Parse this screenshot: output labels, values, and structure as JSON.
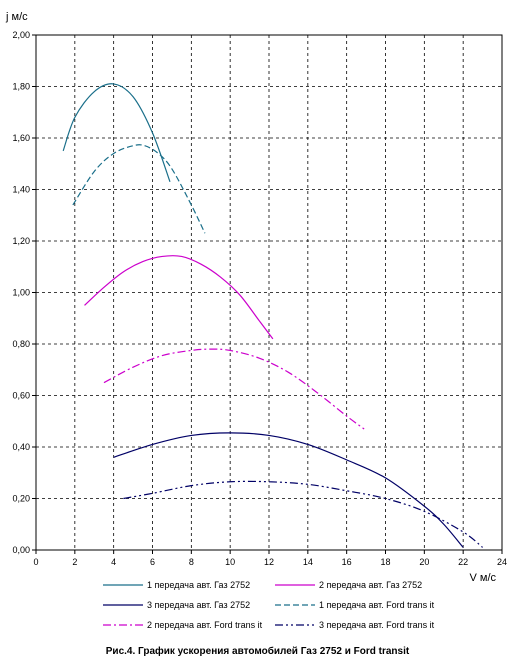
{
  "chart_data": {
    "type": "line",
    "title": "",
    "xlabel": "V м/с",
    "ylabel": "j м/с",
    "xlim": [
      0,
      24
    ],
    "ylim": [
      0,
      2.0
    ],
    "x_ticks": [
      "0",
      "2",
      "4",
      "6",
      "8",
      "10",
      "12",
      "14",
      "16",
      "18",
      "20",
      "22",
      "24"
    ],
    "y_ticks": [
      "0,00",
      "0,20",
      "0,40",
      "0,60",
      "0,80",
      "1,00",
      "1,20",
      "1,40",
      "1,60",
      "1,80",
      "2,00"
    ],
    "grid": true,
    "legend_position": "bottom",
    "series": [
      {
        "name": "1 передача авт. Газ 2752",
        "color": "#1a6f8a",
        "dash": "solid",
        "x": [
          1.4,
          2,
          3,
          4,
          5,
          6,
          6.9
        ],
        "y": [
          1.55,
          1.68,
          1.78,
          1.81,
          1.76,
          1.62,
          1.43
        ]
      },
      {
        "name": "2 передача авт. Газ 2752",
        "color": "#cc00cc",
        "dash": "solid",
        "x": [
          2.5,
          3.5,
          4.5,
          5.5,
          6.5,
          7.5,
          8.5,
          9.5,
          10.5,
          11.5,
          12.2
        ],
        "y": [
          0.95,
          1.02,
          1.08,
          1.12,
          1.14,
          1.14,
          1.11,
          1.06,
          0.99,
          0.89,
          0.82
        ]
      },
      {
        "name": "3 передача авт. Газ 2752",
        "color": "#000066",
        "dash": "solid",
        "x": [
          4,
          6,
          8,
          10,
          12,
          14,
          16,
          18,
          20,
          21,
          22
        ],
        "y": [
          0.36,
          0.41,
          0.445,
          0.455,
          0.445,
          0.41,
          0.35,
          0.28,
          0.17,
          0.1,
          0.01
        ]
      },
      {
        "name": "1 передача авт. Ford trans it",
        "color": "#1a6f8a",
        "dash": "long",
        "x": [
          1.9,
          3,
          4,
          5,
          5.6,
          6.3,
          7,
          8,
          8.7
        ],
        "y": [
          1.34,
          1.47,
          1.54,
          1.57,
          1.57,
          1.54,
          1.48,
          1.34,
          1.23
        ]
      },
      {
        "name": "2 передача авт. Ford trans it",
        "color": "#cc00cc",
        "dash": "dashdot",
        "x": [
          3.5,
          5,
          6.5,
          8,
          9,
          10,
          11.5,
          13,
          14.5,
          16,
          16.9
        ],
        "y": [
          0.65,
          0.71,
          0.755,
          0.775,
          0.78,
          0.775,
          0.745,
          0.69,
          0.61,
          0.52,
          0.47
        ]
      },
      {
        "name": "3 передача авт. Ford trans it",
        "color": "#000066",
        "dash": "dashdotdot",
        "x": [
          4.5,
          6,
          8,
          10,
          12,
          14,
          16,
          18,
          20,
          22,
          23
        ],
        "y": [
          0.2,
          0.22,
          0.25,
          0.265,
          0.265,
          0.255,
          0.23,
          0.2,
          0.15,
          0.07,
          0.01
        ]
      }
    ]
  },
  "caption": "Рис.4. График ускорения автомобилей Газ 2752 и Ford transit"
}
